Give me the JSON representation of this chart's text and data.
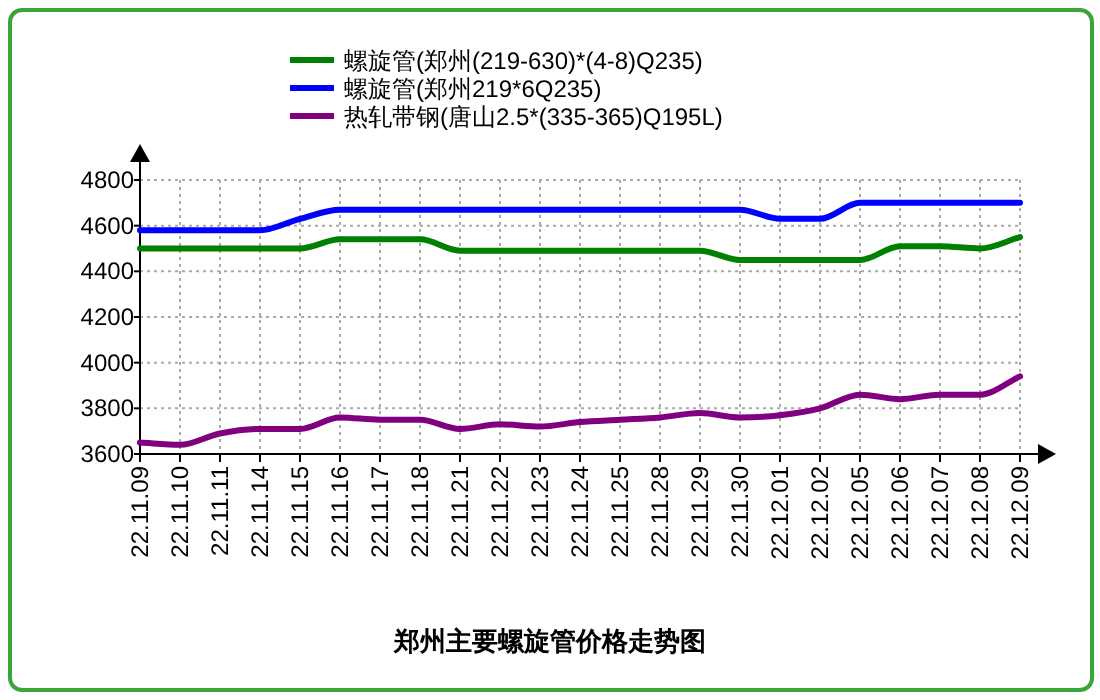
{
  "chart_data": {
    "type": "line",
    "title": "郑州主要螺旋管价格走势图",
    "categories": [
      "22.11.09",
      "22.11.10",
      "22.11.11",
      "22.11.14",
      "22.11.15",
      "22.11.16",
      "22.11.17",
      "22.11.18",
      "22.11.21",
      "22.11.22",
      "22.11.23",
      "22.11.24",
      "22.11.25",
      "22.11.28",
      "22.11.29",
      "22.11.30",
      "22.12.01",
      "22.12.02",
      "22.12.05",
      "22.12.06",
      "22.12.07",
      "22.12.08",
      "22.12.09"
    ],
    "series": [
      {
        "name": "螺旋管(郑州(219-630)*(4-8)Q235)",
        "color": "#008000",
        "values": [
          4500,
          4500,
          4500,
          4500,
          4500,
          4540,
          4540,
          4540,
          4490,
          4490,
          4490,
          4490,
          4490,
          4490,
          4490,
          4450,
          4450,
          4450,
          4450,
          4510,
          4510,
          4500,
          4550
        ]
      },
      {
        "name": "螺旋管(郑州219*6Q235)",
        "color": "#0000ff",
        "values": [
          4580,
          4580,
          4580,
          4580,
          4630,
          4670,
          4670,
          4670,
          4670,
          4670,
          4670,
          4670,
          4670,
          4670,
          4670,
          4670,
          4630,
          4630,
          4700,
          4700,
          4700,
          4700,
          4700
        ]
      },
      {
        "name": "热轧带钢(唐山2.5*(335-365)Q195L)",
        "color": "#800080",
        "values": [
          3650,
          3640,
          3690,
          3710,
          3710,
          3760,
          3750,
          3750,
          3710,
          3730,
          3720,
          3740,
          3750,
          3760,
          3780,
          3760,
          3770,
          3800,
          3860,
          3840,
          3860,
          3860,
          3940
        ]
      }
    ],
    "ylim": [
      3600,
      4800
    ],
    "yticks": [
      3600,
      3800,
      4000,
      4200,
      4400,
      4600,
      4800
    ],
    "grid": true,
    "legend": "top"
  }
}
